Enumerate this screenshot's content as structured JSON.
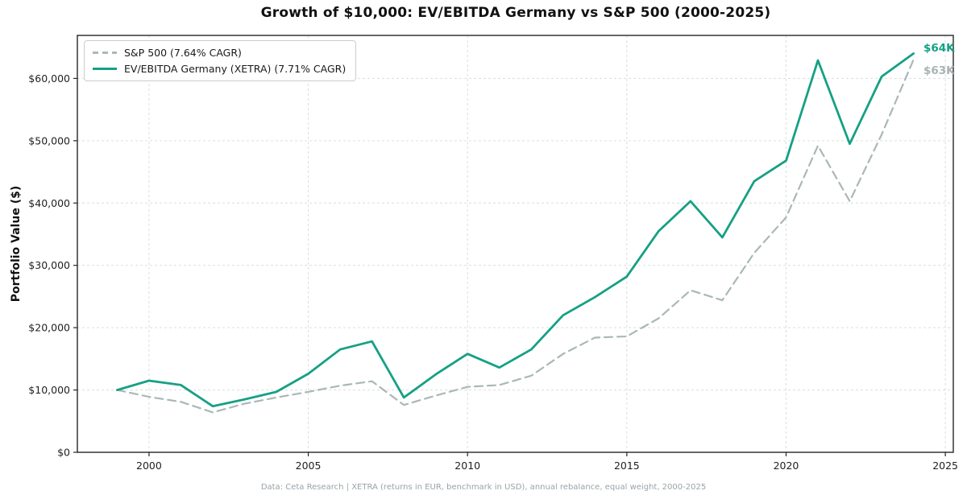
{
  "title": "Growth of $10,000: EV/EBITDA Germany vs S&P 500 (2000-2025)",
  "footer": "Data: Ceta Research | XETRA (returns in EUR, benchmark in USD), annual rebalance, equal weight, 2000-2025",
  "y_axis": {
    "label": "Portfolio Value ($)"
  },
  "legend": [
    {
      "label": "S&P 500 (7.64% CAGR)",
      "color": "#aab7b8",
      "style": "dashed"
    },
    {
      "label": "EV/EBITDA Germany (XETRA) (7.71% CAGR)",
      "color": "#16a085",
      "style": "solid"
    }
  ],
  "annotations": {
    "germany": "$64K",
    "sp500": "$63K"
  },
  "colors": {
    "germany_line": "#16a085",
    "sp500_line": "#aab7b8",
    "grid": "#dadddf",
    "spine": "#262626",
    "tick_label": "#1f1f1f",
    "annotation_sp500": "#a9b2b4",
    "footer_text": "#98a3a8"
  },
  "chart_data": {
    "type": "line",
    "title": "Growth of $10,000: EV/EBITDA Germany vs S&P 500 (2000-2025)",
    "xlabel": "",
    "ylabel": "Portfolio Value ($)",
    "grid": true,
    "legend_position": "upper left",
    "xlim": [
      1997.75,
      2025.25
    ],
    "ylim": [
      0,
      66900
    ],
    "x_ticks": [
      2000,
      2005,
      2010,
      2015,
      2020,
      2025
    ],
    "y_ticks": [
      {
        "value": 0,
        "label": "$0"
      },
      {
        "value": 10000,
        "label": "$10,000"
      },
      {
        "value": 20000,
        "label": "$20,000"
      },
      {
        "value": 30000,
        "label": "$30,000"
      },
      {
        "value": 40000,
        "label": "$40,000"
      },
      {
        "value": 50000,
        "label": "$50,000"
      },
      {
        "value": 60000,
        "label": "$60,000"
      }
    ],
    "x": [
      1999,
      2000,
      2001,
      2002,
      2003,
      2004,
      2005,
      2006,
      2007,
      2008,
      2009,
      2010,
      2011,
      2012,
      2013,
      2014,
      2015,
      2016,
      2017,
      2018,
      2019,
      2020,
      2021,
      2022,
      2023,
      2024
    ],
    "series": [
      {
        "name": "S&P 500 (7.64% CAGR)",
        "color": "#aab7b8",
        "style": "dashed",
        "end_label": "$63K",
        "values": [
          10000,
          8900,
          8100,
          6400,
          7800,
          8800,
          9700,
          10700,
          11400,
          7600,
          9100,
          10500,
          10800,
          12300,
          15800,
          18400,
          18600,
          21500,
          26000,
          24400,
          32000,
          37700,
          49200,
          40300,
          51000,
          63000
        ]
      },
      {
        "name": "EV/EBITDA Germany (XETRA) (7.71% CAGR)",
        "color": "#16a085",
        "style": "solid",
        "end_label": "$64K",
        "values": [
          10000,
          11500,
          10800,
          7400,
          8500,
          9700,
          12600,
          16500,
          17800,
          8800,
          12500,
          15800,
          13600,
          16500,
          22000,
          24900,
          28200,
          35500,
          40300,
          34500,
          43500,
          46800,
          62900,
          49500,
          60300,
          64000
        ]
      }
    ]
  }
}
